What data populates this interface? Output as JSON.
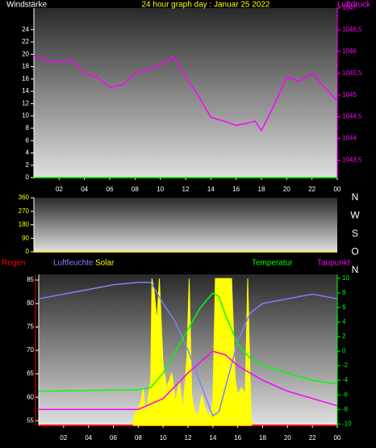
{
  "chart_data": [
    {
      "type": "line",
      "title": "24 hour graph day : Januar 25 2022",
      "ylabel": "Windstärke",
      "y2label": "Luftdruck",
      "xlim": [
        0,
        24
      ],
      "xticks": [
        {
          "value": 2,
          "label": "02"
        },
        {
          "value": 4,
          "label": "04"
        },
        {
          "value": 6,
          "label": "06"
        },
        {
          "value": 8,
          "label": "08"
        },
        10,
        12,
        14,
        16,
        18,
        20,
        22,
        {
          "value": 24,
          "label": "00"
        }
      ],
      "ylim": [
        0,
        27.5
      ],
      "yticks": [
        0,
        2,
        4,
        6,
        8,
        10,
        12,
        14,
        16,
        18,
        20,
        22,
        24
      ],
      "y2lim": [
        1043.1,
        1047
      ],
      "y2ticks": [
        {
          "value": 1043.5,
          "label": "1043,5"
        },
        1044,
        {
          "value": 1044.5,
          "label": "1044,5"
        },
        1045,
        {
          "value": 1045.5,
          "label": "1045,5"
        },
        1046,
        {
          "value": 1046.5,
          "label": "1046,5"
        },
        1047
      ],
      "series": [
        {
          "color": "#00ff00",
          "x": [
            0,
            24
          ],
          "values": [
            0,
            0
          ]
        },
        {
          "color": "#ff00ff",
          "axis": "y2",
          "x": [
            0,
            1,
            2,
            3,
            4,
            5,
            6,
            7,
            8,
            9,
            10,
            11,
            12,
            13,
            14,
            15,
            16,
            17,
            17.5,
            18,
            19,
            20,
            21,
            22,
            23,
            24
          ],
          "values": [
            1045.91,
            1045.8,
            1045.76,
            1045.8,
            1045.5,
            1045.41,
            1045.18,
            1045.23,
            1045.5,
            1045.58,
            1045.69,
            1045.88,
            1045.41,
            1044.99,
            1044.49,
            1044.4,
            1044.3,
            1044.36,
            1044.4,
            1044.18,
            1044.77,
            1045.41,
            1045.32,
            1045.5,
            1045.18,
            1044.86
          ]
        }
      ]
    },
    {
      "type": "line",
      "xlim": [
        0,
        24
      ],
      "ylim": [
        0,
        360
      ],
      "yticks": [
        0,
        90,
        180,
        270,
        360
      ],
      "compass_labels": [
        "N",
        "W",
        "S",
        "O",
        "N"
      ],
      "series": [
        {
          "color": "#ffff00",
          "x": [
            0,
            24
          ],
          "values": [
            0,
            0
          ]
        }
      ]
    },
    {
      "type": "line",
      "rain_label": "Regen",
      "xlim": [
        0,
        24
      ],
      "xticks": [
        {
          "value": 2,
          "label": "02"
        },
        {
          "value": 4,
          "label": "04"
        },
        {
          "value": 6,
          "label": "06"
        },
        {
          "value": 8,
          "label": "08"
        },
        10,
        12,
        14,
        16,
        18,
        20,
        22,
        {
          "value": 24,
          "label": "00"
        }
      ],
      "ylim": [
        54,
        86.2
      ],
      "yticks": [
        55,
        60,
        65,
        70,
        75,
        80,
        85
      ],
      "y2lim": [
        -10.2,
        10.55
      ],
      "y2ticks": [
        -10,
        -8,
        -6,
        -4,
        -2,
        0,
        2,
        4,
        6,
        8,
        10
      ],
      "series": [
        {
          "name": "Solar",
          "color": "#ffff00",
          "axis": "y2",
          "fill": true,
          "x": [
            7.6,
            7.7,
            8.2,
            8.4,
            8.6,
            9.0,
            9.1,
            9.3,
            9.5,
            9.7,
            10.0,
            10.3,
            10.7,
            11.0,
            11.3,
            11.6,
            11.9,
            12.1,
            12.3,
            12.5,
            12.8,
            13.1,
            13.4,
            13.7,
            14.0,
            14.2,
            14.4,
            15.0,
            15.5,
            15.8,
            16.0,
            16.3,
            16.6,
            16.8,
            17.0,
            17.1
          ],
          "values": [
            -10,
            -8.8,
            -7,
            -5,
            -9,
            -4,
            10,
            8,
            4,
            10,
            -2,
            -5,
            -3,
            -7,
            -4,
            -8,
            -1,
            10,
            -6,
            -8,
            -9,
            -6,
            -8,
            -9,
            -7,
            10,
            10,
            10,
            10,
            -4,
            -6,
            -5,
            -6,
            10,
            -4,
            -10
          ]
        },
        {
          "name": "Luftfeuchte",
          "color": "#8080ff",
          "x": [
            0,
            2,
            4,
            6,
            8,
            9,
            10,
            11,
            12,
            13,
            14,
            14.5,
            15,
            16,
            17,
            18,
            20,
            22,
            24
          ],
          "values": [
            81,
            82,
            83,
            84,
            84.5,
            84.5,
            80,
            76,
            70,
            63,
            56,
            57,
            62,
            72,
            78,
            80,
            81,
            82,
            81
          ]
        },
        {
          "name": "Temperatur",
          "color": "#00ff00",
          "axis": "y2",
          "x": [
            0,
            4,
            8,
            9,
            10,
            11,
            12,
            13,
            14,
            14.5,
            15,
            16,
            17,
            18,
            20,
            22,
            24
          ],
          "values": [
            -5.5,
            -5.4,
            -5.3,
            -5,
            -3,
            0,
            3,
            6,
            8,
            7.5,
            5,
            1,
            -1,
            -2,
            -3,
            -4,
            -4.5
          ]
        },
        {
          "name": "Taupunkt",
          "color": "#ff00ff",
          "axis": "y2",
          "x": [
            0,
            4,
            8,
            10,
            12,
            14,
            15,
            16,
            18,
            20,
            22,
            24
          ],
          "values": [
            -8,
            -8,
            -8,
            -6.5,
            -3,
            0,
            -0.5,
            -2,
            -4,
            -5.5,
            -6.5,
            -7.5
          ]
        }
      ]
    }
  ]
}
